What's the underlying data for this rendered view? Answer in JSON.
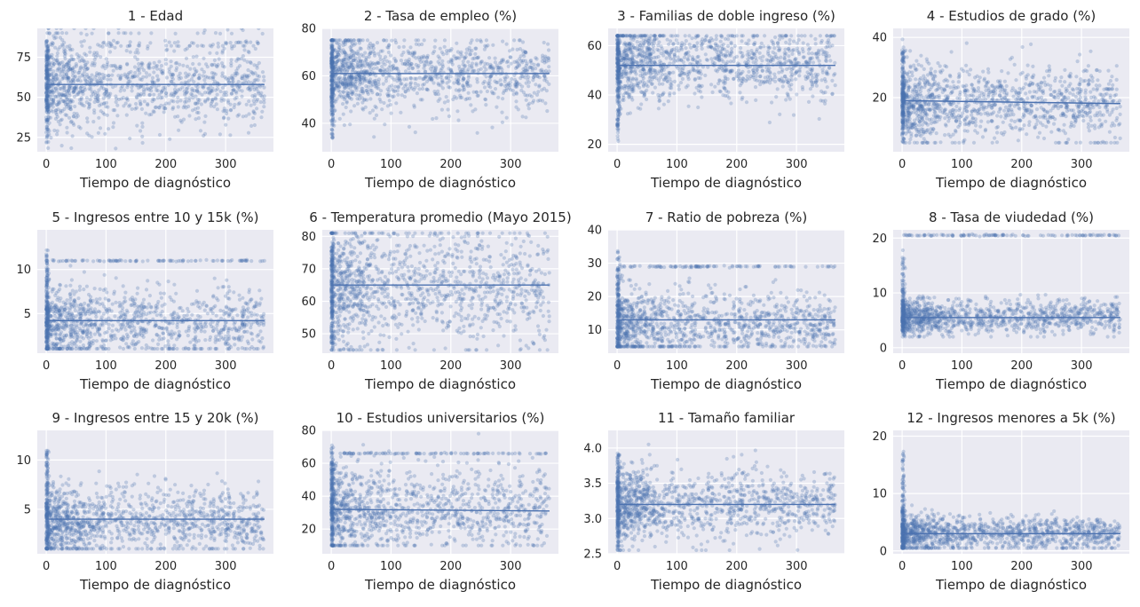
{
  "figure": {
    "marker_color": "#4c72b0",
    "panel_background": "#eaeaf2",
    "grid_color": "#ffffff",
    "text_color": "#262626"
  },
  "chart_data": [
    {
      "type": "scatter",
      "title": "1 - Edad",
      "xlabel": "Tiempo de diagnóstico",
      "ylabel": "",
      "xlim": [
        -15,
        380
      ],
      "ylim": [
        16,
        93
      ],
      "xticks": [
        0,
        100,
        200,
        300
      ],
      "yticks": [
        25,
        50,
        75
      ],
      "grid": true,
      "legend": "none",
      "x_range": [
        0,
        365
      ],
      "band": {
        "min": 38,
        "max": 79,
        "center": 57
      },
      "start_spread": {
        "min": 18,
        "max": 93
      },
      "bands": [
        {
          "y": 82,
          "label": "dense horizontal line"
        },
        {
          "y": 84,
          "label": "dense horizontal line"
        },
        {
          "y": 90,
          "label": "dense horizontal line"
        }
      ],
      "trend": [
        {
          "x": 0,
          "y": 58
        },
        {
          "x": 365,
          "y": 58
        }
      ]
    },
    {
      "type": "scatter",
      "title": "2 - Tasa de empleo (%)",
      "xlabel": "Tiempo de diagnóstico",
      "ylabel": "",
      "xlim": [
        -15,
        380
      ],
      "ylim": [
        28,
        80
      ],
      "xticks": [
        0,
        100,
        200,
        300
      ],
      "yticks": [
        40,
        60,
        80
      ],
      "grid": true,
      "legend": "none",
      "x_range": [
        0,
        365
      ],
      "band": {
        "min": 49,
        "max": 73,
        "center": 61
      },
      "start_spread": {
        "min": 30,
        "max": 75
      },
      "bands": [],
      "trend": [
        {
          "x": 0,
          "y": 61
        },
        {
          "x": 365,
          "y": 61
        }
      ]
    },
    {
      "type": "scatter",
      "title": "3 - Familias de doble ingreso (%)",
      "xlabel": "Tiempo de diagnóstico",
      "ylabel": "",
      "xlim": [
        -15,
        380
      ],
      "ylim": [
        17,
        67
      ],
      "xticks": [
        0,
        100,
        200,
        300
      ],
      "yticks": [
        20,
        40,
        60
      ],
      "grid": true,
      "legend": "none",
      "x_range": [
        0,
        365
      ],
      "band": {
        "min": 40,
        "max": 64,
        "center": 53
      },
      "start_spread": {
        "min": 20,
        "max": 64
      },
      "bands": [],
      "trend": [
        {
          "x": 0,
          "y": 52
        },
        {
          "x": 365,
          "y": 52
        }
      ]
    },
    {
      "type": "scatter",
      "title": "4 - Estudios de grado (%)",
      "xlabel": "Tiempo de diagnóstico",
      "ylabel": "",
      "xlim": [
        -15,
        380
      ],
      "ylim": [
        2,
        43
      ],
      "xticks": [
        0,
        100,
        200,
        300
      ],
      "yticks": [
        20,
        40
      ],
      "grid": true,
      "legend": "none",
      "x_range": [
        0,
        365
      ],
      "band": {
        "min": 10,
        "max": 30,
        "center": 18
      },
      "start_spread": {
        "min": 5,
        "max": 41
      },
      "bands": [],
      "trend": [
        {
          "x": 0,
          "y": 19
        },
        {
          "x": 365,
          "y": 18
        }
      ]
    },
    {
      "type": "scatter",
      "title": "5 - Ingresos entre 10 y 15k (%)",
      "xlabel": "Tiempo de diagnóstico",
      "ylabel": "",
      "xlim": [
        -15,
        380
      ],
      "ylim": [
        0.5,
        14.5
      ],
      "xticks": [
        0,
        100,
        200,
        300
      ],
      "yticks": [
        5,
        10
      ],
      "grid": true,
      "legend": "none",
      "x_range": [
        0,
        365
      ],
      "band": {
        "min": 1.5,
        "max": 8,
        "center": 4
      },
      "start_spread": {
        "min": 1,
        "max": 14
      },
      "bands": [
        {
          "y": 11,
          "label": "sparse row"
        }
      ],
      "trend": [
        {
          "x": 0,
          "y": 4.2
        },
        {
          "x": 365,
          "y": 4.2
        }
      ]
    },
    {
      "type": "scatter",
      "title": "6 - Temperatura promedio (Mayo 2015)",
      "xlabel": "Tiempo de diagnóstico",
      "ylabel": "",
      "xlim": [
        -15,
        380
      ],
      "ylim": [
        44,
        82
      ],
      "xticks": [
        0,
        100,
        200,
        300
      ],
      "yticks": [
        50,
        60,
        70,
        80
      ],
      "grid": true,
      "legend": "none",
      "x_range": [
        0,
        365
      ],
      "band": {
        "min": 52,
        "max": 80,
        "center": 65
      },
      "start_spread": {
        "min": 45,
        "max": 81
      },
      "bands": [],
      "trend": [
        {
          "x": 0,
          "y": 65
        },
        {
          "x": 365,
          "y": 65
        }
      ]
    },
    {
      "type": "scatter",
      "title": "7 - Ratio de pobreza (%)",
      "xlabel": "Tiempo de diagnóstico",
      "ylabel": "",
      "xlim": [
        -15,
        380
      ],
      "ylim": [
        3,
        40
      ],
      "xticks": [
        0,
        100,
        200,
        300
      ],
      "yticks": [
        10,
        20,
        30,
        40
      ],
      "grid": true,
      "legend": "none",
      "x_range": [
        0,
        365
      ],
      "band": {
        "min": 6,
        "max": 22,
        "center": 12
      },
      "start_spread": {
        "min": 5,
        "max": 38
      },
      "bands": [
        {
          "y": 29,
          "label": "sparse row"
        }
      ],
      "trend": [
        {
          "x": 0,
          "y": 13
        },
        {
          "x": 365,
          "y": 13
        }
      ]
    },
    {
      "type": "scatter",
      "title": "8 - Tasa de viudedad (%)",
      "xlabel": "Tiempo de diagnóstico",
      "ylabel": "",
      "xlim": [
        -15,
        380
      ],
      "ylim": [
        -1,
        21.5
      ],
      "xticks": [
        0,
        100,
        200,
        300
      ],
      "yticks": [
        0,
        10,
        20
      ],
      "grid": true,
      "legend": "none",
      "x_range": [
        0,
        365
      ],
      "band": {
        "min": 3,
        "max": 8,
        "center": 5.5
      },
      "start_spread": {
        "min": 2,
        "max": 20.5
      },
      "bands": [
        {
          "y": 20.5,
          "label": "sparse row"
        }
      ],
      "trend": [
        {
          "x": 0,
          "y": 5.5
        },
        {
          "x": 365,
          "y": 5.5
        }
      ]
    },
    {
      "type": "scatter",
      "title": "9 - Ingresos entre 15 y 20k (%)",
      "xlabel": "Tiempo de diagnóstico",
      "ylabel": "",
      "xlim": [
        -15,
        380
      ],
      "ylim": [
        0.5,
        13
      ],
      "xticks": [
        0,
        100,
        200,
        300
      ],
      "yticks": [
        5,
        10
      ],
      "grid": true,
      "legend": "none",
      "x_range": [
        0,
        365
      ],
      "band": {
        "min": 1.5,
        "max": 7,
        "center": 3.8
      },
      "start_spread": {
        "min": 1,
        "max": 12.5
      },
      "bands": [],
      "trend": [
        {
          "x": 0,
          "y": 4
        },
        {
          "x": 365,
          "y": 4
        }
      ]
    },
    {
      "type": "scatter",
      "title": "10 - Estudios universitarios (%)",
      "xlabel": "Tiempo de diagnóstico",
      "ylabel": "",
      "xlim": [
        -15,
        380
      ],
      "ylim": [
        5,
        80
      ],
      "xticks": [
        0,
        100,
        200,
        300
      ],
      "yticks": [
        20,
        40,
        60,
        80
      ],
      "grid": true,
      "legend": "none",
      "x_range": [
        0,
        365
      ],
      "band": {
        "min": 15,
        "max": 55,
        "center": 32
      },
      "start_spread": {
        "min": 10,
        "max": 78
      },
      "bands": [
        {
          "y": 66,
          "label": "sparse row"
        }
      ],
      "trend": [
        {
          "x": 0,
          "y": 32
        },
        {
          "x": 365,
          "y": 31
        }
      ]
    },
    {
      "type": "scatter",
      "title": "11 - Tamaño familiar",
      "xlabel": "Tiempo de diagnóstico",
      "ylabel": "",
      "xlim": [
        -15,
        380
      ],
      "ylim": [
        2.5,
        4.25
      ],
      "xticks": [
        0,
        100,
        200,
        300
      ],
      "yticks": [
        2.5,
        3.0,
        3.5,
        4.0
      ],
      "grid": true,
      "legend": "none",
      "x_range": [
        0,
        365
      ],
      "band": {
        "min": 2.85,
        "max": 3.6,
        "center": 3.2
      },
      "start_spread": {
        "min": 2.55,
        "max": 4.15
      },
      "bands": [],
      "trend": [
        {
          "x": 0,
          "y": 3.2
        },
        {
          "x": 365,
          "y": 3.2
        }
      ]
    },
    {
      "type": "scatter",
      "title": "12 - Ingresos menores a 5k (%)",
      "xlabel": "Tiempo de diagnóstico",
      "ylabel": "",
      "xlim": [
        -15,
        380
      ],
      "ylim": [
        -0.5,
        21
      ],
      "xticks": [
        0,
        100,
        200,
        300
      ],
      "yticks": [
        0,
        10,
        20
      ],
      "grid": true,
      "legend": "none",
      "x_range": [
        0,
        365
      ],
      "band": {
        "min": 1,
        "max": 6,
        "center": 3
      },
      "start_spread": {
        "min": 0.5,
        "max": 20
      },
      "bands": [],
      "trend": [
        {
          "x": 0,
          "y": 3
        },
        {
          "x": 365,
          "y": 3
        }
      ]
    }
  ]
}
